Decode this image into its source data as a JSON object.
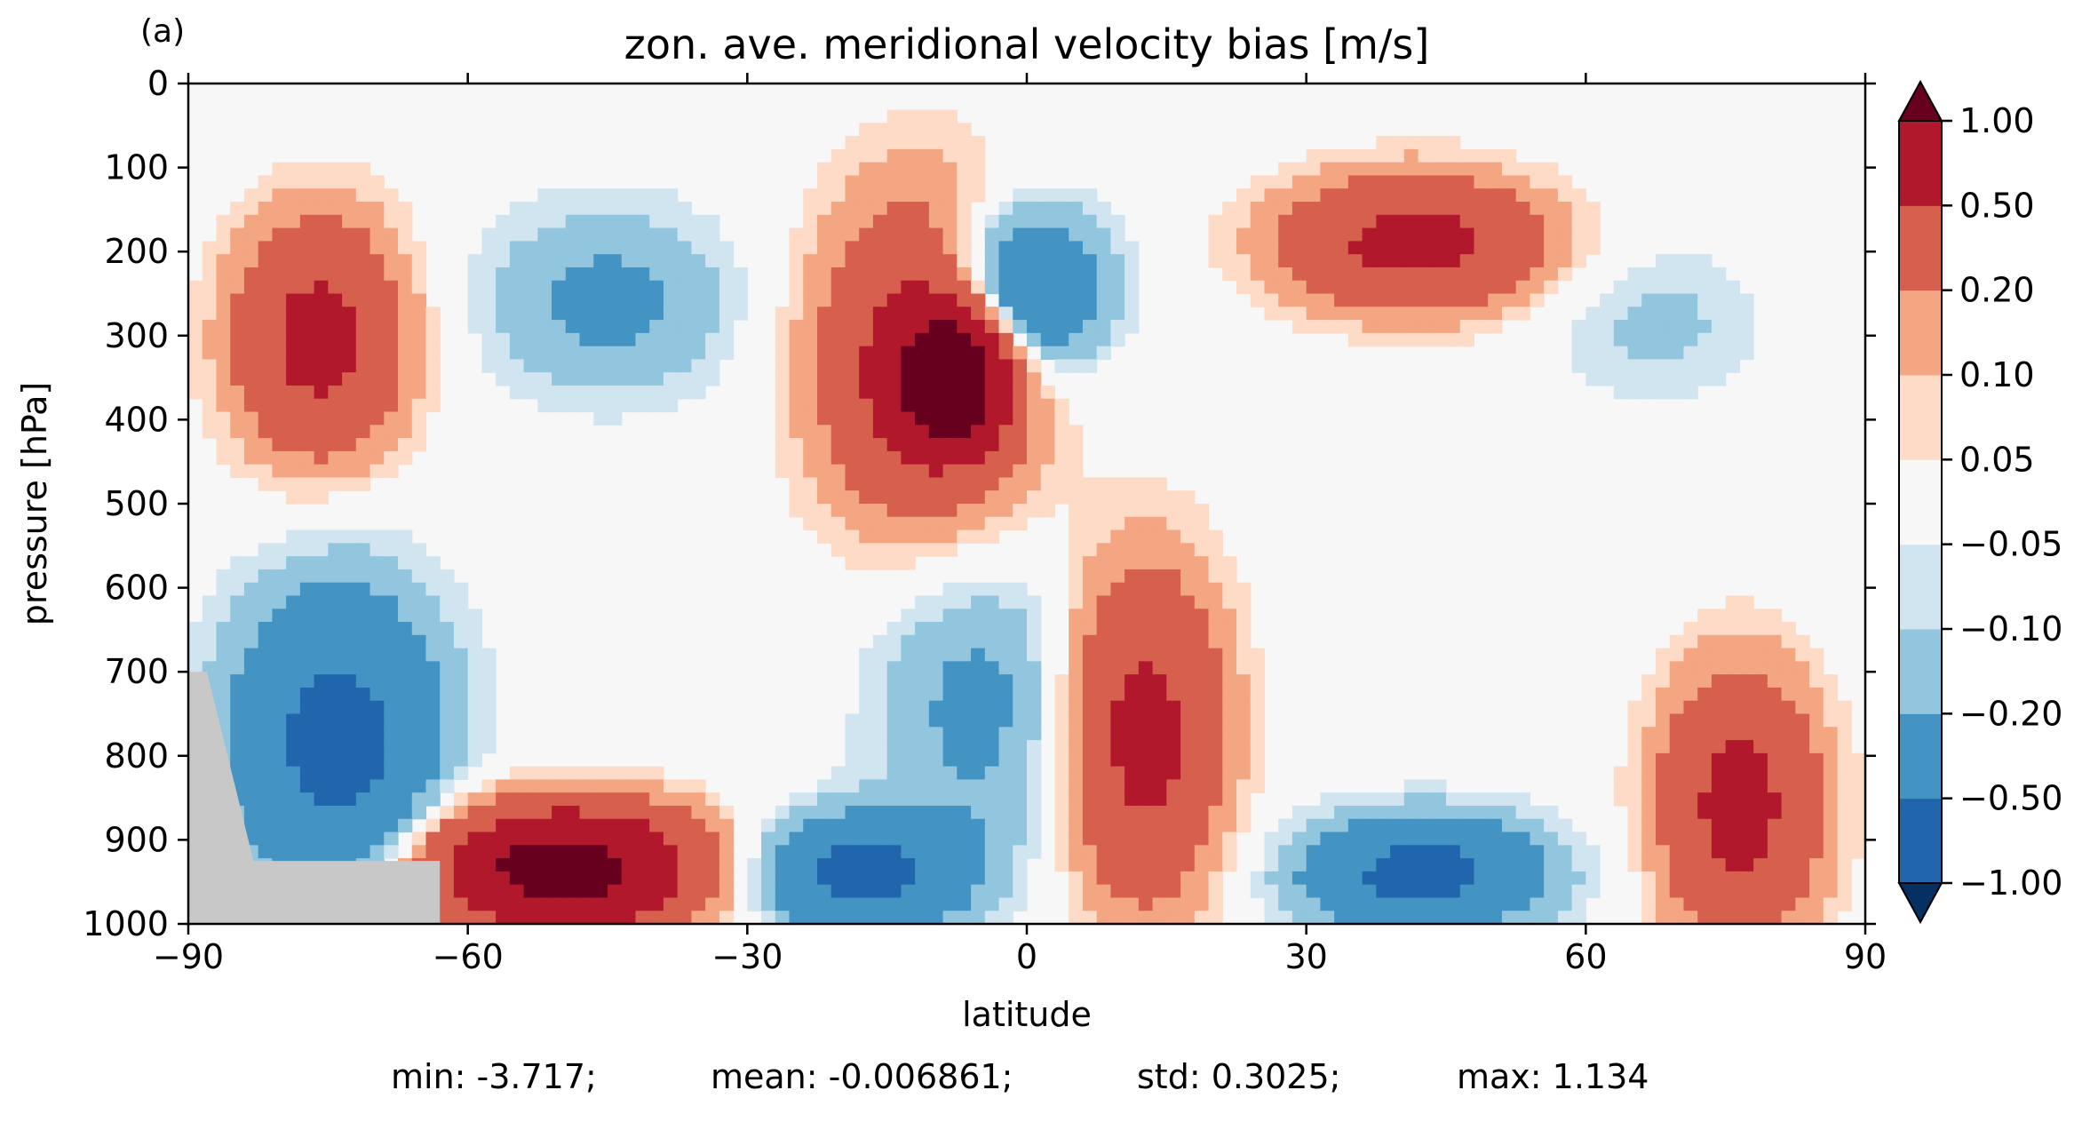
{
  "panel_label": "(a)",
  "chart_data": {
    "type": "contour",
    "title": "zon. ave. meridional velocity bias [m/s]",
    "xlabel": "latitude",
    "ylabel": "pressure [hPa]",
    "xlim": [
      -90,
      90
    ],
    "ylim": [
      1000,
      0
    ],
    "y_inverted": true,
    "xticks": [
      -90,
      -60,
      -30,
      0,
      30,
      60,
      90
    ],
    "xtick_labels": [
      "−90",
      "−60",
      "−30",
      "0",
      "30",
      "60",
      "90"
    ],
    "yticks": [
      0,
      100,
      200,
      300,
      400,
      500,
      600,
      700,
      800,
      900,
      1000
    ],
    "ytick_labels": [
      "0",
      "100",
      "200",
      "300",
      "400",
      "500",
      "600",
      "700",
      "800",
      "900",
      "1000"
    ],
    "colorbar": {
      "levels": [
        -1.0,
        -0.5,
        -0.2,
        -0.1,
        -0.05,
        0.05,
        0.1,
        0.2,
        0.5,
        1.0
      ],
      "tick_labels": [
        "−1.00",
        "−0.50",
        "−0.20",
        "−0.10",
        "−0.05",
        "0.05",
        "0.10",
        "0.20",
        "0.50",
        "1.00"
      ],
      "colors": [
        "#053061",
        "#2166ac",
        "#4393c3",
        "#92c5de",
        "#d1e5f0",
        "#f7f7f7",
        "#fddbc7",
        "#f4a582",
        "#d6604d",
        "#b2182b",
        "#67001f"
      ],
      "extend": "both"
    },
    "masked_color": "#c8c8c8",
    "grid": false,
    "features": [
      {
        "sign": "+",
        "level": 0.5,
        "lat": [
          -84,
          -68
        ],
        "p": [
          180,
          430
        ],
        "description": "positive bias aloft near Antarctic"
      },
      {
        "sign": "-",
        "level": -0.5,
        "lat": [
          -84,
          -64
        ],
        "p": [
          620,
          950
        ],
        "description": "strong negative bias low levels Antarctic"
      },
      {
        "sign": "-",
        "level": -0.2,
        "lat": [
          -57,
          -33
        ],
        "p": [
          160,
          360
        ]
      },
      {
        "sign": "+",
        "level": 1.0,
        "lat": [
          -13,
          -3
        ],
        "p": [
          280,
          420
        ]
      },
      {
        "sign": "+",
        "level": 0.5,
        "lat": [
          -21,
          -1
        ],
        "p": [
          160,
          500
        ]
      },
      {
        "sign": "-",
        "level": -0.5,
        "lat": [
          -8,
          7
        ],
        "p": [
          160,
          330
        ]
      },
      {
        "sign": "-",
        "level": -0.2,
        "lat": [
          -15,
          5
        ],
        "p": [
          580,
          900
        ]
      },
      {
        "sign": "+",
        "level": 0.5,
        "lat": [
          5,
          20
        ],
        "p": [
          600,
          950
        ]
      },
      {
        "sign": "+",
        "level": 1.0,
        "lat": [
          -63,
          -37
        ],
        "p": [
          870,
          1000
        ]
      },
      {
        "sign": "-",
        "level": -0.5,
        "lat": [
          -28,
          -8
        ],
        "p": [
          880,
          1000
        ]
      },
      {
        "sign": "+",
        "level": 0.5,
        "lat": [
          29,
          54
        ],
        "p": [
          120,
          260
        ]
      },
      {
        "sign": "-",
        "level": -0.5,
        "lat": [
          31,
          54
        ],
        "p": [
          880,
          1000
        ]
      },
      {
        "sign": "+",
        "level": 0.5,
        "lat": [
          69,
          84
        ],
        "p": [
          720,
          1000
        ]
      },
      {
        "sign": "-",
        "level": -0.1,
        "lat": [
          57,
          78
        ],
        "p": [
          200,
          370
        ]
      }
    ]
  },
  "stats": {
    "min": "min: -3.717;",
    "mean": "mean: -0.006861;",
    "std": "std: 0.3025;",
    "max": "max: 1.134"
  }
}
